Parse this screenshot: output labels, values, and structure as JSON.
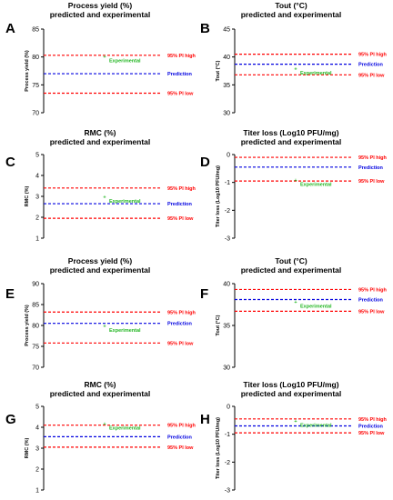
{
  "colors": {
    "pi_high": "#ff0000",
    "prediction": "#0000e0",
    "pi_low": "#ff0000",
    "experimental": "#22b622"
  },
  "chart_data": [
    {
      "type": "line",
      "panel": "A",
      "title": [
        "Process yield (%)",
        "predicted and experimental"
      ],
      "ylabel": "Process yield (%)",
      "ylim": [
        70,
        85
      ],
      "yticks": [
        70,
        75,
        80,
        85
      ],
      "lines": {
        "pi_high": 80.3,
        "prediction": 77.0,
        "pi_low": 73.5
      },
      "labels": {
        "pi_high": "95% PI high",
        "prediction": "Prediction",
        "pi_low": "95% PI low",
        "experimental": "Experimental"
      },
      "experimental": 80.2
    },
    {
      "type": "line",
      "panel": "B",
      "title": [
        "Tout (°C)",
        "predicted and experimental"
      ],
      "ylabel": "Tout (°C)",
      "ylim": [
        30,
        45
      ],
      "yticks": [
        30,
        35,
        40,
        45
      ],
      "lines": {
        "pi_high": 40.5,
        "prediction": 38.7,
        "pi_low": 36.8
      },
      "labels": {
        "pi_high": "95% PI high",
        "prediction": "Prediction",
        "pi_low": "95% PI low",
        "experimental": "Experimental"
      },
      "experimental": 38.0
    },
    {
      "type": "line",
      "panel": "C",
      "title": [
        "RMC (%)",
        "predicted and experimental"
      ],
      "ylabel": "RMC (%)",
      "ylim": [
        1,
        5
      ],
      "yticks": [
        1,
        2,
        3,
        4,
        5
      ],
      "lines": {
        "pi_high": 3.4,
        "prediction": 2.65,
        "pi_low": 1.95
      },
      "labels": {
        "pi_high": "95% PI high",
        "prediction": "Prediction",
        "pi_low": "95% PI low",
        "experimental": "Experimental"
      },
      "experimental": 3.0
    },
    {
      "type": "line",
      "panel": "D",
      "title": [
        "Titer loss (Log10 PFU/mg)",
        "predicted and experimental"
      ],
      "ylabel": "Titer loss (Log10 PFU/mg)",
      "ylim": [
        -3,
        0
      ],
      "yticks": [
        -3,
        -2,
        -1,
        0
      ],
      "lines": {
        "pi_high": -0.1,
        "prediction": -0.45,
        "pi_low": -0.95
      },
      "labels": {
        "pi_high": "95% PI high",
        "prediction": "Prediction",
        "pi_low": "95% PI low",
        "experimental": "Experimental"
      },
      "experimental": -0.9
    },
    {
      "type": "line",
      "panel": "E",
      "title": [
        "Process yield (%)",
        "predicted and experimental"
      ],
      "ylabel": "Process yield (%)",
      "ylim": [
        70,
        90
      ],
      "yticks": [
        70,
        75,
        80,
        85,
        90
      ],
      "lines": {
        "pi_high": 83.2,
        "prediction": 80.5,
        "pi_low": 75.8
      },
      "labels": {
        "pi_high": "95% PI high",
        "prediction": "Prediction",
        "pi_low": "95% PI low",
        "experimental": "Experimental"
      },
      "experimental": 80.0
    },
    {
      "type": "line",
      "panel": "F",
      "title": [
        "Tout (°C)",
        "predicted and experimental"
      ],
      "ylabel": "Tout (°C)",
      "ylim": [
        30,
        40
      ],
      "yticks": [
        30,
        35,
        40
      ],
      "lines": {
        "pi_high": 39.3,
        "prediction": 38.1,
        "pi_low": 36.7
      },
      "labels": {
        "pi_high": "95% PI high",
        "prediction": "Prediction",
        "pi_low": "95% PI low",
        "experimental": "Experimental"
      },
      "experimental": 37.9
    },
    {
      "type": "line",
      "panel": "G",
      "title": [
        "RMC (%)",
        "predicted and experimental"
      ],
      "ylabel": "RMC (%)",
      "ylim": [
        1,
        5
      ],
      "yticks": [
        1,
        2,
        3,
        4,
        5
      ],
      "lines": {
        "pi_high": 4.1,
        "prediction": 3.55,
        "pi_low": 3.05
      },
      "labels": {
        "pi_high": "95% PI high",
        "prediction": "Prediction",
        "pi_low": "95% PI low",
        "experimental": "Experimental"
      },
      "experimental": 4.2
    },
    {
      "type": "line",
      "panel": "H",
      "title": [
        "Titer loss (Log10 PFU/mg)",
        "predicted and experimental"
      ],
      "ylabel": "Titer loss (Log10 PFU/mg)",
      "ylim": [
        -3,
        0
      ],
      "yticks": [
        -3,
        -2,
        -1,
        0
      ],
      "lines": {
        "pi_high": -0.45,
        "prediction": -0.7,
        "pi_low": -0.95
      },
      "labels": {
        "pi_high": "95% PI high",
        "prediction": "Prediction",
        "pi_low": "95% PI low",
        "experimental": "Experimental"
      },
      "experimental": -0.5
    }
  ]
}
